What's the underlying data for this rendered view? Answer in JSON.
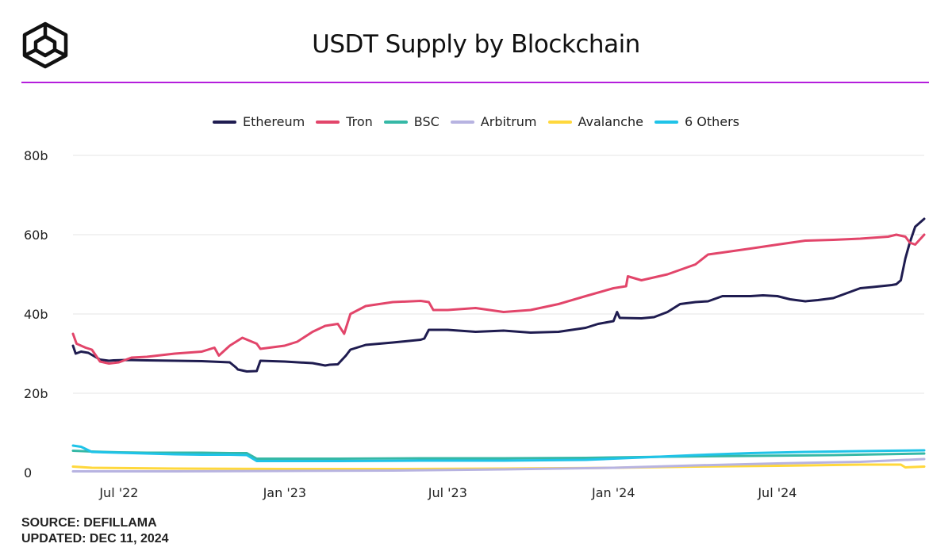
{
  "header": {
    "logo_icon": "cube-logo-icon",
    "title": "USDT Supply by Blockchain",
    "accent_color": "#b41edc"
  },
  "footer": {
    "source": "SOURCE: DEFILLAMA",
    "updated": "UPDATED: DEC 11, 2024"
  },
  "chart_data": {
    "type": "line",
    "title": "USDT Supply by Blockchain",
    "xlabel": "",
    "ylabel": "",
    "x_range": [
      "2022-05-11",
      "2024-12-11"
    ],
    "ylim": [
      0,
      80
    ],
    "y_ticks": [
      0,
      20,
      40,
      60,
      80
    ],
    "y_tick_labels": [
      "0",
      "20b",
      "40b",
      "60b",
      "80b"
    ],
    "x_ticks": [
      "2022-07-01",
      "2023-01-01",
      "2023-07-01",
      "2024-01-01",
      "2024-07-01"
    ],
    "x_tick_labels": [
      "Jul '22",
      "Jan '23",
      "Jul '23",
      "Jan '24",
      "Jul '24"
    ],
    "grid": "horizontal",
    "legend_position": "top-center",
    "series": [
      {
        "name": "Ethereum",
        "color": "#1f1c50",
        "x": [
          "2022-05-11",
          "2022-05-14",
          "2022-05-20",
          "2022-05-28",
          "2022-06-10",
          "2022-06-20",
          "2022-06-25",
          "2022-07-10",
          "2022-08-01",
          "2022-09-01",
          "2022-10-01",
          "2022-11-01",
          "2022-11-08",
          "2022-11-10",
          "2022-11-20",
          "2022-12-01",
          "2022-12-05",
          "2023-01-01",
          "2023-02-01",
          "2023-02-15",
          "2023-02-20",
          "2023-03-01",
          "2023-03-10",
          "2023-03-15",
          "2023-04-01",
          "2023-05-01",
          "2023-06-01",
          "2023-06-05",
          "2023-06-10",
          "2023-07-01",
          "2023-08-01",
          "2023-09-01",
          "2023-10-01",
          "2023-11-01",
          "2023-12-01",
          "2023-12-15",
          "2024-01-01",
          "2024-01-05",
          "2024-01-08",
          "2024-01-10",
          "2024-02-01",
          "2024-02-15",
          "2024-03-01",
          "2024-03-15",
          "2024-04-01",
          "2024-04-15",
          "2024-05-01",
          "2024-06-01",
          "2024-06-15",
          "2024-07-01",
          "2024-07-15",
          "2024-08-01",
          "2024-08-15",
          "2024-09-01",
          "2024-10-01",
          "2024-10-15",
          "2024-11-01",
          "2024-11-05",
          "2024-11-10",
          "2024-11-15",
          "2024-11-20",
          "2024-11-25",
          "2024-12-01",
          "2024-12-11"
        ],
        "values": [
          32,
          30,
          30.5,
          30.2,
          28.5,
          28.2,
          28.3,
          28.4,
          28.3,
          28.2,
          28.1,
          27.8,
          26.5,
          26,
          25.5,
          25.6,
          28.2,
          28,
          27.6,
          27,
          27.2,
          27.3,
          29.5,
          31,
          32.2,
          32.8,
          33.5,
          33.8,
          36,
          36,
          35.5,
          35.8,
          35.3,
          35.5,
          36.5,
          37.5,
          38.2,
          40.5,
          39,
          39,
          38.9,
          39.2,
          40.5,
          42.5,
          43,
          43.2,
          44.5,
          44.5,
          44.7,
          44.5,
          43.7,
          43.2,
          43.5,
          44,
          46.5,
          46.8,
          47.2,
          47.3,
          47.5,
          48.5,
          54,
          58,
          62,
          64
        ]
      },
      {
        "name": "Tron",
        "color": "#e2456a",
        "x": [
          "2022-05-11",
          "2022-05-15",
          "2022-05-25",
          "2022-06-01",
          "2022-06-10",
          "2022-06-20",
          "2022-07-01",
          "2022-07-15",
          "2022-08-01",
          "2022-09-01",
          "2022-10-01",
          "2022-10-15",
          "2022-10-20",
          "2022-11-01",
          "2022-11-15",
          "2022-12-01",
          "2022-12-05",
          "2023-01-01",
          "2023-01-15",
          "2023-02-01",
          "2023-02-15",
          "2023-03-01",
          "2023-03-08",
          "2023-03-15",
          "2023-04-01",
          "2023-05-01",
          "2023-06-01",
          "2023-06-10",
          "2023-06-15",
          "2023-07-01",
          "2023-08-01",
          "2023-09-01",
          "2023-10-01",
          "2023-11-01",
          "2023-12-01",
          "2024-01-01",
          "2024-01-15",
          "2024-01-17",
          "2024-02-01",
          "2024-03-01",
          "2024-04-01",
          "2024-04-15",
          "2024-05-01",
          "2024-06-01",
          "2024-07-01",
          "2024-08-01",
          "2024-09-01",
          "2024-10-01",
          "2024-11-01",
          "2024-11-10",
          "2024-11-20",
          "2024-11-25",
          "2024-12-01",
          "2024-12-11"
        ],
        "values": [
          35,
          32.5,
          31.5,
          31,
          28,
          27.5,
          27.8,
          29,
          29.2,
          30,
          30.5,
          31.5,
          29.5,
          32,
          34,
          32.5,
          31.2,
          32,
          33,
          35.5,
          37,
          37.5,
          35,
          40,
          42,
          43,
          43.3,
          43,
          41,
          41,
          41.5,
          40.5,
          41,
          42.5,
          44.5,
          46.5,
          47,
          49.5,
          48.5,
          50,
          52.5,
          55,
          55.5,
          56.5,
          57.5,
          58.5,
          58.7,
          59,
          59.5,
          60,
          59.5,
          58,
          57.5,
          60
        ]
      },
      {
        "name": "BSC",
        "color": "#35b8a6",
        "x": [
          "2022-05-11",
          "2022-06-01",
          "2022-07-01",
          "2022-08-01",
          "2022-09-01",
          "2022-10-01",
          "2022-11-01",
          "2022-11-20",
          "2022-12-01",
          "2023-03-01",
          "2023-06-01",
          "2023-09-01",
          "2023-12-01",
          "2024-03-01",
          "2024-06-01",
          "2024-09-01",
          "2024-12-11"
        ],
        "values": [
          5.5,
          5.3,
          5.1,
          5.0,
          5.0,
          5.0,
          4.9,
          4.9,
          3.5,
          3.5,
          3.6,
          3.6,
          3.7,
          4.0,
          4.2,
          4.4,
          4.8
        ]
      },
      {
        "name": "Arbitrum",
        "color": "#b7b3e1",
        "x": [
          "2022-05-11",
          "2022-09-01",
          "2023-01-01",
          "2023-05-01",
          "2023-09-01",
          "2024-01-01",
          "2024-04-01",
          "2024-07-01",
          "2024-10-01",
          "2024-12-11"
        ],
        "values": [
          0.3,
          0.3,
          0.4,
          0.5,
          0.8,
          1.2,
          1.8,
          2.3,
          2.7,
          3.4
        ]
      },
      {
        "name": "Avalanche",
        "color": "#ffd83c",
        "x": [
          "2022-05-11",
          "2022-06-01",
          "2022-09-01",
          "2023-01-01",
          "2023-05-01",
          "2023-09-01",
          "2024-01-01",
          "2024-04-01",
          "2024-07-01",
          "2024-10-01",
          "2024-11-15",
          "2024-11-20",
          "2024-12-11"
        ],
        "values": [
          1.5,
          1.2,
          1.0,
          0.9,
          0.9,
          1.0,
          1.2,
          1.5,
          1.7,
          2.0,
          2.0,
          1.3,
          1.5
        ]
      },
      {
        "name": "6 Others",
        "color": "#1fc3e8",
        "x": [
          "2022-05-11",
          "2022-05-20",
          "2022-06-01",
          "2022-07-01",
          "2022-08-01",
          "2022-09-01",
          "2022-10-01",
          "2022-11-01",
          "2022-11-20",
          "2022-12-01",
          "2023-01-01",
          "2023-03-01",
          "2023-06-01",
          "2023-09-01",
          "2023-12-01",
          "2024-02-01",
          "2024-04-01",
          "2024-06-01",
          "2024-08-01",
          "2024-10-01",
          "2024-11-01",
          "2024-12-11"
        ],
        "values": [
          6.8,
          6.5,
          5.2,
          5.0,
          4.8,
          4.6,
          4.5,
          4.5,
          4.4,
          2.9,
          2.9,
          2.9,
          3.0,
          3.0,
          3.2,
          3.8,
          4.4,
          4.9,
          5.2,
          5.4,
          5.5,
          5.6
        ]
      }
    ]
  }
}
